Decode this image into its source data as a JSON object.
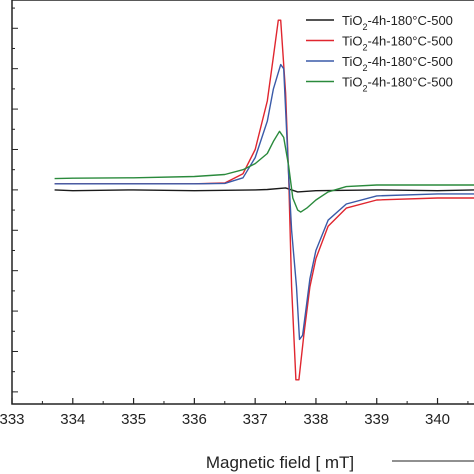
{
  "chart_data": {
    "type": "line",
    "title": "",
    "xlabel": "Magnetic field [ mT]",
    "ylabel": "",
    "xlim": [
      333,
      340.6
    ],
    "ylim": [
      -5.3,
      4.7
    ],
    "x_ticks": [
      333,
      334,
      335,
      336,
      337,
      338,
      339,
      340
    ],
    "grid": false,
    "legend_position": "top-right",
    "series": [
      {
        "name": "TiO2-4h-180°C-500",
        "legend_main": "TiO",
        "legend_sub": "2",
        "legend_rest": "-4h-180°C-500",
        "color": "#1a1a1a",
        "points": [
          [
            333.7,
            0.0
          ],
          [
            334,
            -0.02
          ],
          [
            335,
            0.0
          ],
          [
            336,
            -0.02
          ],
          [
            337,
            0.0
          ],
          [
            337.2,
            0.01
          ],
          [
            337.5,
            0.05
          ],
          [
            337.7,
            -0.05
          ],
          [
            338,
            -0.02
          ],
          [
            339,
            0.0
          ],
          [
            340,
            -0.02
          ],
          [
            340.6,
            0.0
          ]
        ]
      },
      {
        "name": "TiO2-4h-180°C-500",
        "legend_main": "TiO",
        "legend_sub": "2",
        "legend_rest": "-4h-180°C-500",
        "color": "#e0262f",
        "points": [
          [
            333.7,
            0.15
          ],
          [
            334,
            0.15
          ],
          [
            335,
            0.15
          ],
          [
            336,
            0.15
          ],
          [
            336.5,
            0.17
          ],
          [
            336.8,
            0.4
          ],
          [
            337.0,
            1.0
          ],
          [
            337.2,
            2.2
          ],
          [
            337.3,
            3.3
          ],
          [
            337.38,
            4.2
          ],
          [
            337.42,
            4.2
          ],
          [
            337.5,
            2.4
          ],
          [
            337.55,
            0.4
          ],
          [
            337.6,
            -2.4
          ],
          [
            337.67,
            -4.7
          ],
          [
            337.72,
            -4.7
          ],
          [
            337.8,
            -3.6
          ],
          [
            337.9,
            -2.4
          ],
          [
            338.0,
            -1.7
          ],
          [
            338.2,
            -0.9
          ],
          [
            338.5,
            -0.45
          ],
          [
            339,
            -0.25
          ],
          [
            340,
            -0.2
          ],
          [
            340.6,
            -0.2
          ]
        ]
      },
      {
        "name": "TiO2-4h-180°C-500",
        "legend_main": "TiO",
        "legend_sub": "2",
        "legend_rest": "-4h-180°C-500",
        "color": "#3a5aa8",
        "points": [
          [
            333.7,
            0.15
          ],
          [
            334,
            0.15
          ],
          [
            335,
            0.15
          ],
          [
            336,
            0.15
          ],
          [
            336.5,
            0.16
          ],
          [
            336.8,
            0.3
          ],
          [
            337.0,
            0.8
          ],
          [
            337.2,
            1.7
          ],
          [
            337.3,
            2.5
          ],
          [
            337.42,
            3.1
          ],
          [
            337.47,
            3.0
          ],
          [
            337.55,
            0.4
          ],
          [
            337.6,
            -1.0
          ],
          [
            337.68,
            -2.4
          ],
          [
            337.73,
            -3.7
          ],
          [
            337.78,
            -3.6
          ],
          [
            337.9,
            -2.2
          ],
          [
            338.0,
            -1.5
          ],
          [
            338.2,
            -0.75
          ],
          [
            338.5,
            -0.35
          ],
          [
            339,
            -0.15
          ],
          [
            340,
            -0.1
          ],
          [
            340.6,
            -0.1
          ]
        ]
      },
      {
        "name": "TiO2-4h-180°C-500",
        "legend_main": "TiO",
        "legend_sub": "2",
        "legend_rest": "-4h-180°C-500",
        "color": "#2a8a3c",
        "points": [
          [
            333.7,
            0.28
          ],
          [
            334,
            0.29
          ],
          [
            335,
            0.3
          ],
          [
            336,
            0.33
          ],
          [
            336.5,
            0.38
          ],
          [
            336.8,
            0.5
          ],
          [
            337.0,
            0.65
          ],
          [
            337.2,
            0.9
          ],
          [
            337.3,
            1.2
          ],
          [
            337.4,
            1.45
          ],
          [
            337.47,
            1.3
          ],
          [
            337.55,
            0.6
          ],
          [
            337.62,
            -0.2
          ],
          [
            337.7,
            -0.5
          ],
          [
            337.75,
            -0.55
          ],
          [
            337.85,
            -0.45
          ],
          [
            338.0,
            -0.25
          ],
          [
            338.2,
            -0.05
          ],
          [
            338.5,
            0.08
          ],
          [
            339,
            0.12
          ],
          [
            340,
            0.12
          ],
          [
            340.6,
            0.12
          ]
        ]
      }
    ]
  }
}
